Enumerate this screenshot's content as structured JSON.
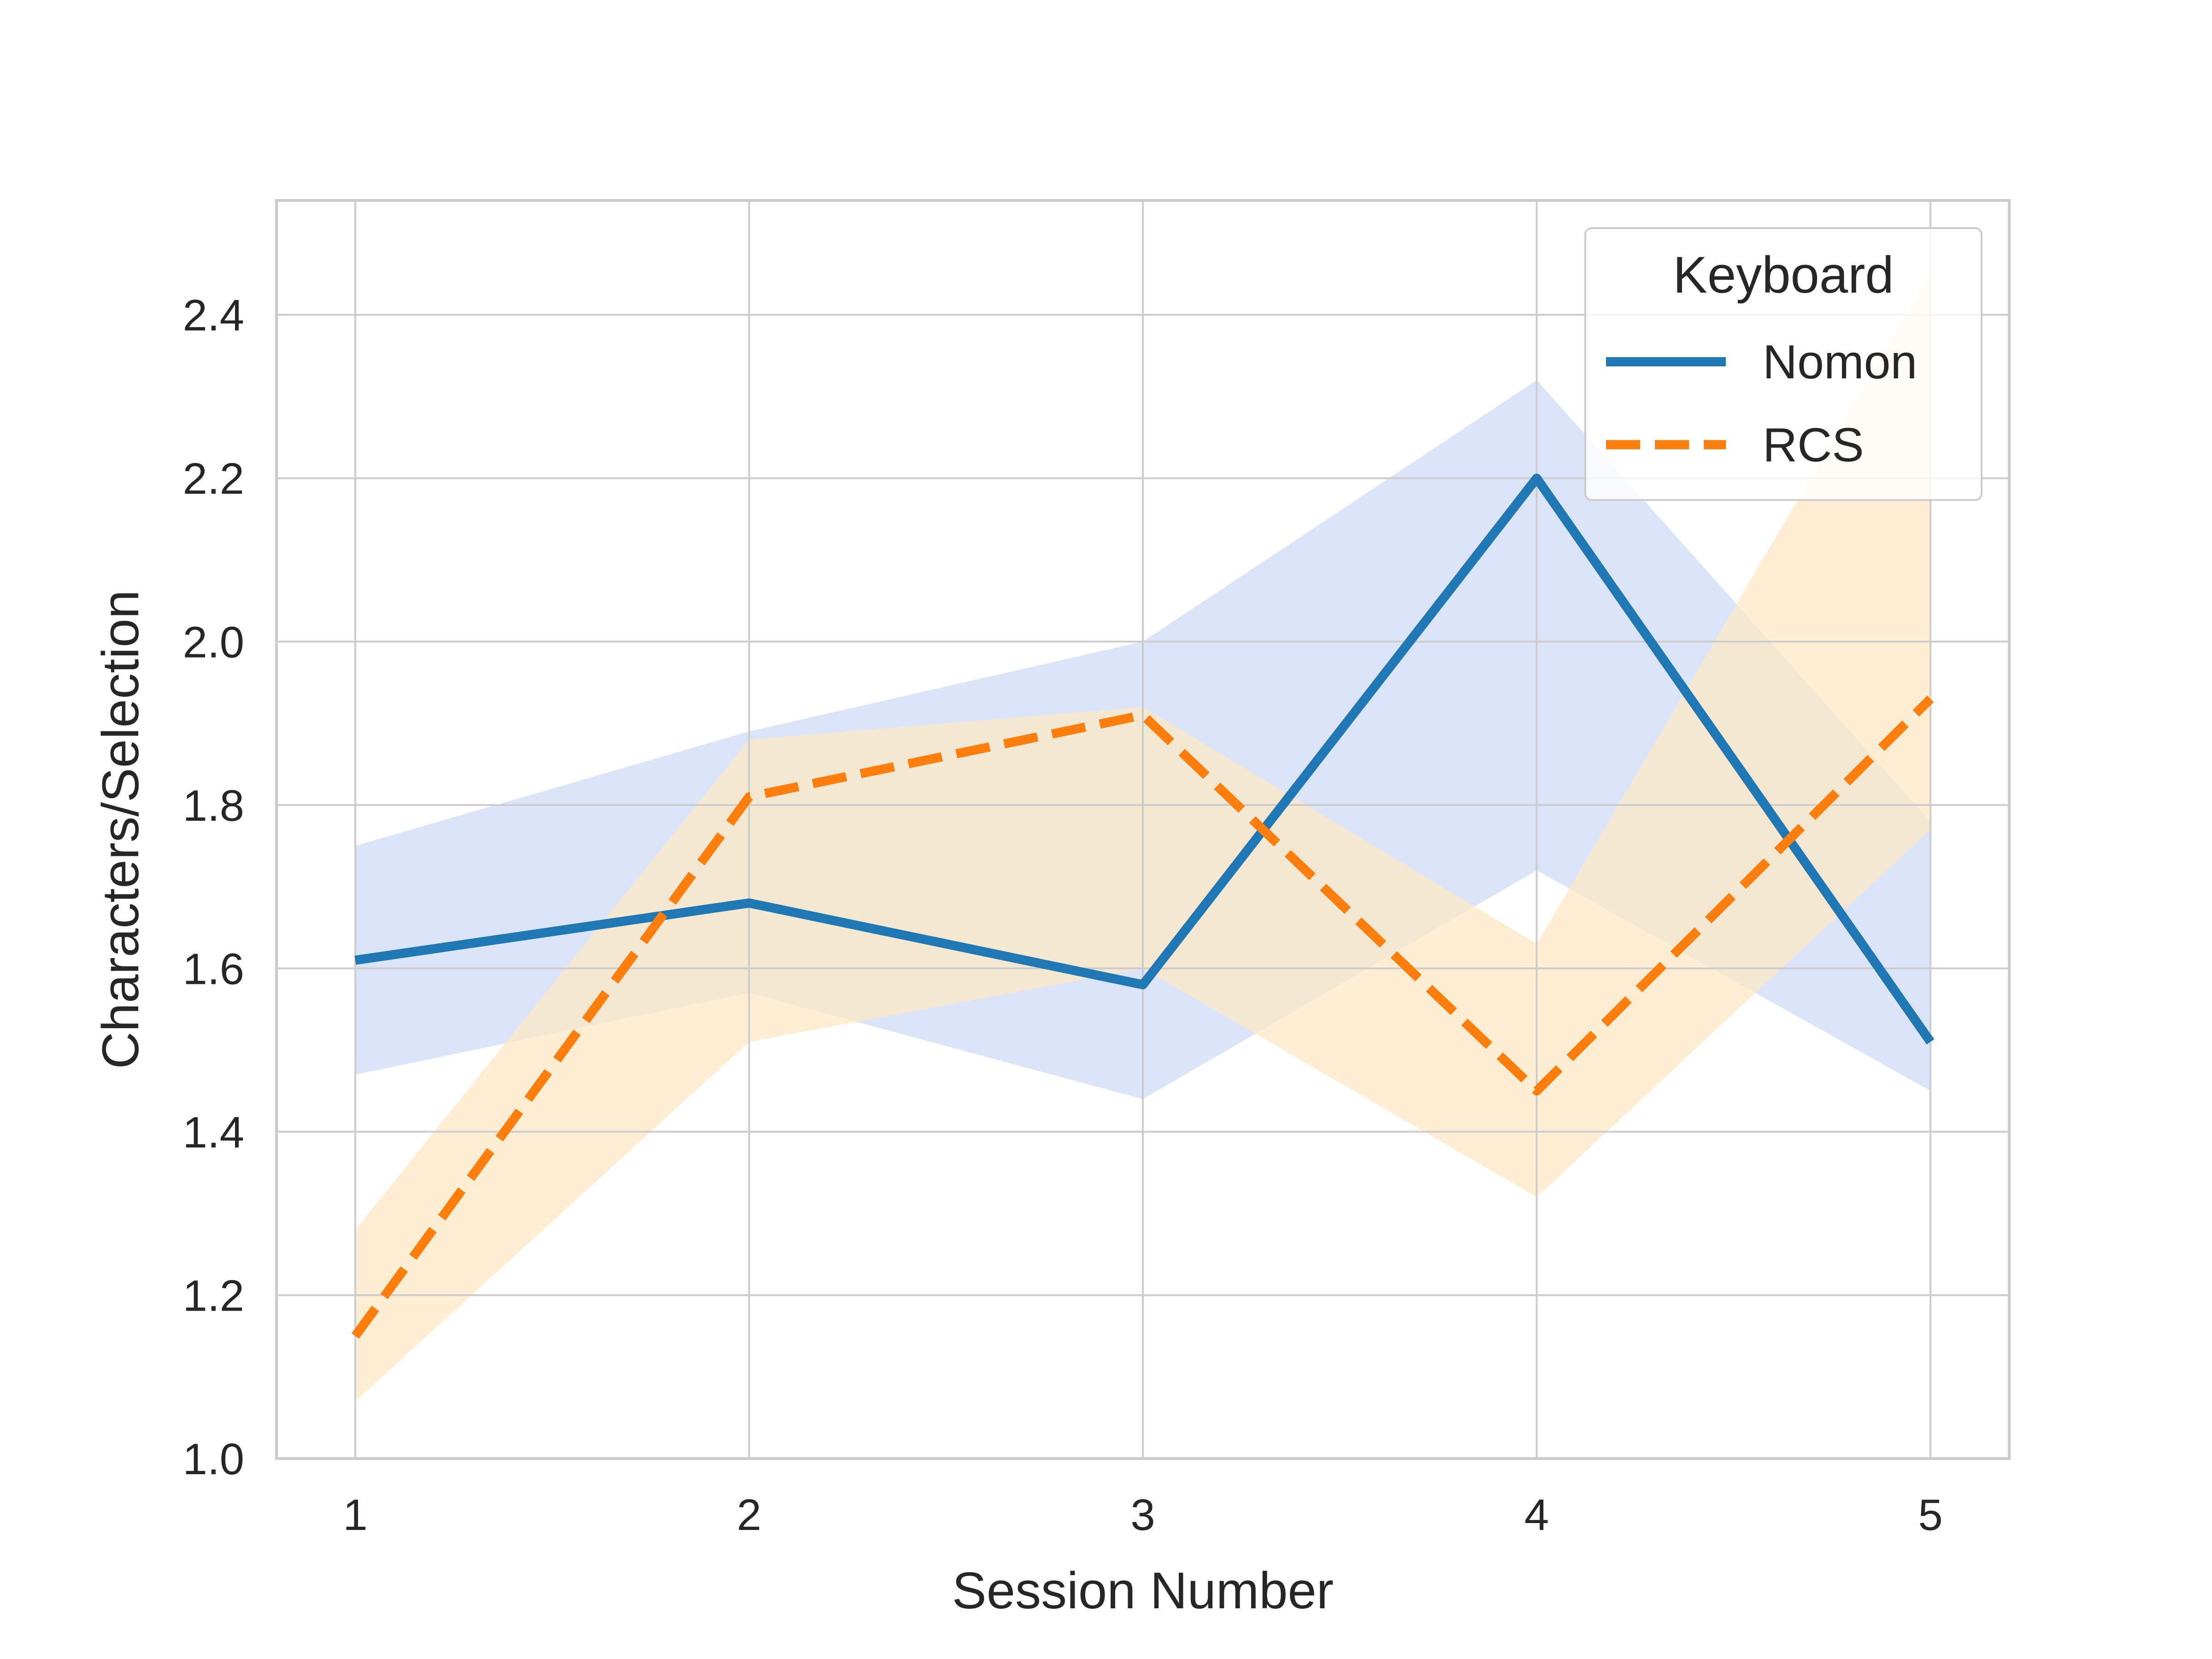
{
  "chart_data": {
    "type": "line",
    "xlabel": "Session Number",
    "ylabel": "Characters/Selection",
    "x": [
      1,
      2,
      3,
      4,
      5
    ],
    "xlim": [
      0.8,
      5.2
    ],
    "ylim": [
      1.0,
      2.54
    ],
    "yticks": [
      "1.0",
      "1.2",
      "1.4",
      "1.6",
      "1.8",
      "2.0",
      "2.2",
      "2.4"
    ],
    "xticks": [
      "1",
      "2",
      "3",
      "4",
      "5"
    ],
    "grid": true,
    "legend": {
      "title": "Keyboard",
      "placement": "top-right"
    },
    "series": [
      {
        "name": "Nomon",
        "color": "#1f77b4",
        "band_color": "#dbe4f8",
        "line_style": "solid",
        "values": [
          1.61,
          1.68,
          1.58,
          2.2,
          1.51
        ],
        "ci_lower": [
          1.47,
          1.57,
          1.44,
          1.72,
          1.45
        ],
        "ci_upper": [
          1.75,
          1.89,
          2.0,
          2.32,
          1.78
        ]
      },
      {
        "name": "RCS",
        "color": "#ff7f0e",
        "band_color": "#fde9c6",
        "line_style": "dashed",
        "values": [
          1.15,
          1.81,
          1.91,
          1.45,
          1.93
        ],
        "ci_lower": [
          1.07,
          1.51,
          1.6,
          1.32,
          1.77
        ],
        "ci_upper": [
          1.28,
          1.88,
          1.92,
          1.63,
          2.45
        ]
      }
    ]
  }
}
